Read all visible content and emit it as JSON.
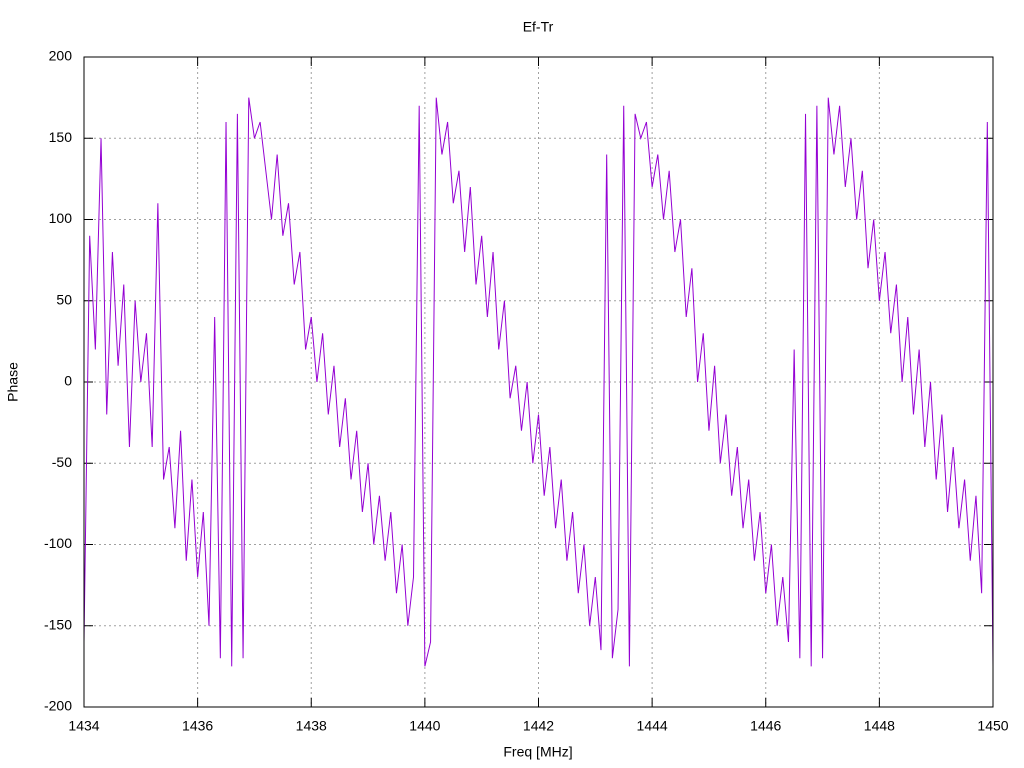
{
  "chart_data": {
    "type": "line",
    "title": "Ef-Tr",
    "x_label": "Freq [MHz]",
    "y_label": "Phase",
    "x": [
      1434.0,
      1434.1,
      1434.2,
      1434.3,
      1434.4,
      1434.5,
      1434.6,
      1434.7,
      1434.8,
      1434.9,
      1435.0,
      1435.1,
      1435.2,
      1435.3,
      1435.4,
      1435.5,
      1435.6,
      1435.7,
      1435.8,
      1435.9,
      1436.0,
      1436.1,
      1436.2,
      1436.3,
      1436.4,
      1436.5,
      1436.6,
      1436.7,
      1436.8,
      1436.9,
      1437.0,
      1437.1,
      1437.2,
      1437.3,
      1437.4,
      1437.5,
      1437.6,
      1437.7,
      1437.8,
      1437.9,
      1438.0,
      1438.1,
      1438.2,
      1438.3,
      1438.4,
      1438.5,
      1438.6,
      1438.7,
      1438.8,
      1438.9,
      1439.0,
      1439.1,
      1439.2,
      1439.3,
      1439.4,
      1439.5,
      1439.6,
      1439.7,
      1439.8,
      1439.9,
      1440.0,
      1440.1,
      1440.2,
      1440.3,
      1440.4,
      1440.5,
      1440.6,
      1440.7,
      1440.8,
      1440.9,
      1441.0,
      1441.1,
      1441.2,
      1441.3,
      1441.4,
      1441.5,
      1441.6,
      1441.7,
      1441.8,
      1441.9,
      1442.0,
      1442.1,
      1442.2,
      1442.3,
      1442.4,
      1442.5,
      1442.6,
      1442.7,
      1442.8,
      1442.9,
      1443.0,
      1443.1,
      1443.2,
      1443.3,
      1443.4,
      1443.5,
      1443.6,
      1443.7,
      1443.8,
      1443.9,
      1444.0,
      1444.1,
      1444.2,
      1444.3,
      1444.4,
      1444.5,
      1444.6,
      1444.7,
      1444.8,
      1444.9,
      1445.0,
      1445.1,
      1445.2,
      1445.3,
      1445.4,
      1445.5,
      1445.6,
      1445.7,
      1445.8,
      1445.9,
      1446.0,
      1446.1,
      1446.2,
      1446.3,
      1446.4,
      1446.5,
      1446.6,
      1446.7,
      1446.8,
      1446.9,
      1447.0,
      1447.1,
      1447.2,
      1447.3,
      1447.4,
      1447.5,
      1447.6,
      1447.7,
      1447.8,
      1447.9,
      1448.0,
      1448.1,
      1448.2,
      1448.3,
      1448.4,
      1448.5,
      1448.6,
      1448.7,
      1448.8,
      1448.9,
      1449.0,
      1449.1,
      1449.2,
      1449.3,
      1449.4,
      1449.5,
      1449.6,
      1449.7,
      1449.8,
      1449.9,
      1450.0
    ],
    "series": [
      {
        "color": "#9400d3",
        "values": [
          -160,
          90,
          20,
          150,
          -20,
          80,
          10,
          60,
          -40,
          50,
          0,
          30,
          -40,
          110,
          -60,
          -40,
          -90,
          -30,
          -110,
          -60,
          -120,
          -80,
          -150,
          40,
          -170,
          160,
          -175,
          165,
          -170,
          175,
          150,
          160,
          130,
          100,
          140,
          90,
          110,
          60,
          80,
          20,
          40,
          0,
          30,
          -20,
          10,
          -40,
          -10,
          -60,
          -30,
          -80,
          -50,
          -100,
          -70,
          -110,
          -80,
          -130,
          -100,
          -150,
          -120,
          170,
          -175,
          -160,
          175,
          140,
          160,
          110,
          130,
          80,
          120,
          60,
          90,
          40,
          80,
          20,
          50,
          -10,
          10,
          -30,
          0,
          -50,
          -20,
          -70,
          -40,
          -90,
          -60,
          -110,
          -80,
          -130,
          -100,
          -150,
          -120,
          -165,
          140,
          -170,
          -140,
          170,
          -175,
          165,
          150,
          160,
          120,
          140,
          100,
          130,
          80,
          100,
          40,
          70,
          0,
          30,
          -30,
          10,
          -50,
          -20,
          -70,
          -40,
          -90,
          -60,
          -110,
          -80,
          -130,
          -100,
          -150,
          -120,
          -160,
          20,
          -170,
          165,
          -175,
          170,
          -170,
          175,
          140,
          170,
          120,
          150,
          100,
          130,
          70,
          100,
          50,
          80,
          30,
          60,
          0,
          40,
          -20,
          20,
          -40,
          0,
          -60,
          -20,
          -80,
          -40,
          -90,
          -60,
          -110,
          -70,
          -130,
          160,
          -175
        ]
      }
    ],
    "xlim": [
      1434,
      1450
    ],
    "xticks": [
      1434,
      1436,
      1438,
      1440,
      1442,
      1444,
      1446,
      1448,
      1450
    ],
    "ylim": [
      -200,
      200
    ],
    "yticks": [
      -200,
      -150,
      -100,
      -50,
      0,
      50,
      100,
      150,
      200
    ],
    "grid": true
  }
}
